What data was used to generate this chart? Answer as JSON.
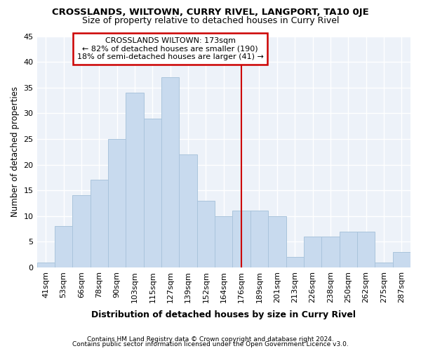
{
  "title": "CROSSLANDS, WILTOWN, CURRY RIVEL, LANGPORT, TA10 0JE",
  "subtitle": "Size of property relative to detached houses in Curry Rivel",
  "xlabel": "Distribution of detached houses by size in Curry Rivel",
  "ylabel": "Number of detached properties",
  "categories": [
    "41sqm",
    "53sqm",
    "66sqm",
    "78sqm",
    "90sqm",
    "103sqm",
    "115sqm",
    "127sqm",
    "139sqm",
    "152sqm",
    "164sqm",
    "176sqm",
    "189sqm",
    "201sqm",
    "213sqm",
    "226sqm",
    "238sqm",
    "250sqm",
    "262sqm",
    "275sqm",
    "287sqm"
  ],
  "values": [
    1,
    8,
    14,
    17,
    25,
    34,
    29,
    37,
    22,
    13,
    10,
    11,
    11,
    10,
    2,
    6,
    6,
    7,
    7,
    1,
    3
  ],
  "bar_color": "#c8daee",
  "bar_edge_color": "#aac4dc",
  "vline_index": 11,
  "vline_color": "#cc0000",
  "annotation_line1": "CROSSLANDS WILTOWN: 173sqm",
  "annotation_line2": "← 82% of detached houses are smaller (190)",
  "annotation_line3": "18% of semi-detached houses are larger (41) →",
  "annotation_box_color": "white",
  "annotation_box_edge": "#cc0000",
  "ylim": [
    0,
    45
  ],
  "yticks": [
    0,
    5,
    10,
    15,
    20,
    25,
    30,
    35,
    40,
    45
  ],
  "fig_background": "#ffffff",
  "ax_background": "#edf2f9",
  "grid_color": "#ffffff",
  "footer1": "Contains HM Land Registry data © Crown copyright and database right 2024.",
  "footer2": "Contains public sector information licensed under the Open Government Licence v3.0."
}
